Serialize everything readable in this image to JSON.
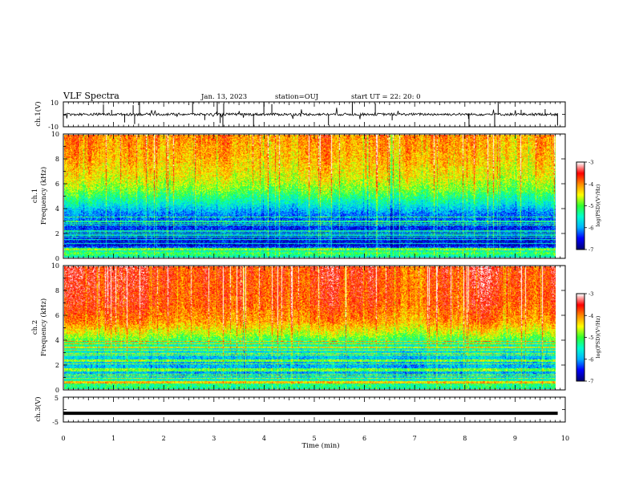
{
  "header": {
    "title": "VLF Spectra",
    "date": "Jan. 13, 2023",
    "station": "station=OUJ",
    "start": "start  UT =   22: 20: 0"
  },
  "chart_data": [
    {
      "type": "line",
      "name": "ch.1 waveform",
      "ylabel": "ch.1(V)",
      "ylim": [
        -10,
        10
      ],
      "yticks": [
        "10",
        "-10"
      ],
      "xlim": [
        0,
        10
      ],
      "baseline": 0,
      "noise_amplitude": 1,
      "data_end": 9.85
    },
    {
      "type": "heatmap",
      "name": "ch.1 spectrogram",
      "ylabel": "ch.1\nFrequency  (kHz)",
      "ylim": [
        0,
        10
      ],
      "yticks": [
        "0",
        "2",
        "4",
        "6",
        "8",
        "10"
      ],
      "xlim": [
        0,
        10
      ],
      "data_end": 9.85,
      "colorbar": {
        "label": "log(PSD)(V²/Hz)",
        "range": [
          -7,
          -3
        ],
        "ticks": [
          "-3",
          "-4",
          "-5",
          "-6",
          "-7"
        ]
      },
      "profile": [
        {
          "f": 0.0,
          "logpsd": -5.6
        },
        {
          "f": 0.4,
          "logpsd": -5.0
        },
        {
          "f": 1.0,
          "logpsd": -6.6
        },
        {
          "f": 2.5,
          "logpsd": -6.4
        },
        {
          "f": 3.6,
          "logpsd": -6.1
        },
        {
          "f": 4.5,
          "logpsd": -5.5
        },
        {
          "f": 5.5,
          "logpsd": -4.9
        },
        {
          "f": 6.5,
          "logpsd": -4.5
        },
        {
          "f": 8.0,
          "logpsd": -4.2
        },
        {
          "f": 10.0,
          "logpsd": -4.0
        }
      ]
    },
    {
      "type": "heatmap",
      "name": "ch.2 spectrogram",
      "ylabel": "ch.2\nFrequency  (kHz)",
      "ylim": [
        0,
        10
      ],
      "yticks": [
        "0",
        "2",
        "4",
        "6",
        "8",
        "10"
      ],
      "xlim": [
        0,
        10
      ],
      "data_end": 9.85,
      "colorbar": {
        "label": "log(PSD)(V²/Hz)",
        "range": [
          -7,
          -3
        ],
        "ticks": [
          "-3",
          "-4",
          "-5",
          "-6",
          "-7"
        ]
      },
      "profile": [
        {
          "f": 0.0,
          "logpsd": -5.4
        },
        {
          "f": 0.5,
          "logpsd": -5.2
        },
        {
          "f": 1.2,
          "logpsd": -6.0
        },
        {
          "f": 2.5,
          "logpsd": -5.9
        },
        {
          "f": 3.5,
          "logpsd": -5.5
        },
        {
          "f": 4.5,
          "logpsd": -4.7
        },
        {
          "f": 5.5,
          "logpsd": -4.1
        },
        {
          "f": 7.0,
          "logpsd": -3.8
        },
        {
          "f": 10.0,
          "logpsd": -3.7
        }
      ]
    },
    {
      "type": "line",
      "name": "ch.3 waveform",
      "ylabel": "ch.3(V)",
      "ylim": [
        -5,
        5
      ],
      "yticks": [
        "5",
        "-5"
      ],
      "xlim": [
        0,
        10
      ],
      "baseline": -1.5,
      "data_end": 9.85
    }
  ],
  "x_axis": {
    "label": "Time  (min)",
    "ticks": [
      "0",
      "1",
      "2",
      "3",
      "4",
      "5",
      "6",
      "7",
      "8",
      "9",
      "10"
    ]
  },
  "colors": {
    "colormap": [
      "#00007a",
      "#0000ff",
      "#00b4ff",
      "#00ffd0",
      "#30ff30",
      "#ffff00",
      "#ff8c00",
      "#ff0000",
      "#ffffff"
    ]
  }
}
